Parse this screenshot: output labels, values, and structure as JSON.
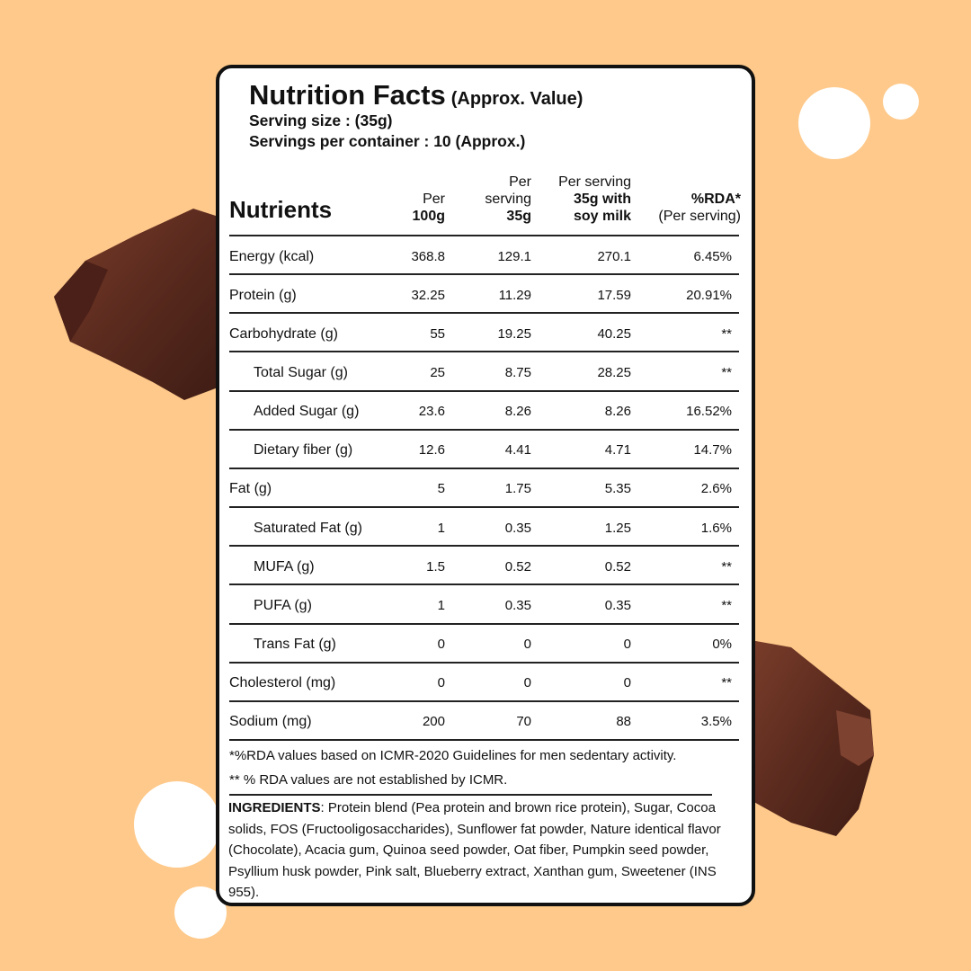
{
  "label": {
    "title": "Nutrition Facts",
    "subtitle": "(Approx. Value)",
    "serving_size": "Serving size :  (35g)",
    "servings_per_container": "Servings per container : 10 (Approx.)",
    "header": {
      "nutrients": "Nutrients",
      "columns": [
        {
          "lines": [
            {
              "text": "Per",
              "bold": false
            },
            {
              "text": "100g",
              "bold": true
            }
          ]
        },
        {
          "lines": [
            {
              "text": "Per",
              "bold": false
            },
            {
              "text": "serving",
              "bold": false
            },
            {
              "text": "35g",
              "bold": true
            }
          ]
        },
        {
          "lines": [
            {
              "text": "Per serving",
              "bold": false
            },
            {
              "text": "35g with",
              "bold": true
            },
            {
              "text": "soy milk",
              "bold": true
            }
          ]
        },
        {
          "lines": [
            {
              "text": "%RDA*",
              "bold": true
            },
            {
              "text": "(Per serving)",
              "bold": false
            }
          ]
        }
      ]
    },
    "rows": [
      {
        "name": "Energy (kcal)",
        "indent": false,
        "values": [
          "368.8",
          "129.1",
          "270.1",
          "6.45%"
        ]
      },
      {
        "name": "Protein (g)",
        "indent": false,
        "values": [
          "32.25",
          "11.29",
          "17.59",
          "20.91%"
        ]
      },
      {
        "name": "Carbohydrate (g)",
        "indent": false,
        "values": [
          "55",
          "19.25",
          "40.25",
          "**"
        ]
      },
      {
        "name": "Total Sugar (g)",
        "indent": true,
        "values": [
          "25",
          "8.75",
          "28.25",
          "**"
        ]
      },
      {
        "name": "Added Sugar (g)",
        "indent": true,
        "values": [
          "23.6",
          "8.26",
          "8.26",
          "16.52%"
        ]
      },
      {
        "name": "Dietary fiber (g)",
        "indent": true,
        "values": [
          "12.6",
          "4.41",
          "4.71",
          "14.7%"
        ]
      },
      {
        "name": "Fat (g)",
        "indent": false,
        "values": [
          "5",
          "1.75",
          "5.35",
          "2.6%"
        ]
      },
      {
        "name": "Saturated Fat (g)",
        "indent": true,
        "values": [
          "1",
          "0.35",
          "1.25",
          "1.6%"
        ]
      },
      {
        "name": "MUFA (g)",
        "indent": true,
        "values": [
          "1.5",
          "0.52",
          "0.52",
          "**"
        ]
      },
      {
        "name": "PUFA (g)",
        "indent": true,
        "values": [
          "1",
          "0.35",
          "0.35",
          "**"
        ]
      },
      {
        "name": "Trans Fat (g)",
        "indent": true,
        "values": [
          "0",
          "0",
          "0",
          "0%"
        ]
      },
      {
        "name": "Cholesterol (mg)",
        "indent": false,
        "values": [
          "0",
          "0",
          "0",
          "**"
        ]
      },
      {
        "name": "Sodium (mg)",
        "indent": false,
        "values": [
          "200",
          "70",
          "88",
          "3.5%"
        ]
      }
    ],
    "footnotes": [
      "*%RDA values based on ICMR-2020 Guidelines for men sedentary activity.",
      "** % RDA values are not established by ICMR."
    ],
    "ingredients": {
      "label": "INGREDIENTS",
      "text": ": Protein blend (Pea protein and brown rice protein), Sugar, Cocoa solids, FOS (Fructooligosaccharides), Sunflower fat powder, Nature identical flavor (Chocolate), Acacia gum, Quinoa seed powder, Oat fiber, Pumpkin seed powder, Psyllium husk powder, Pink salt, Blueberry extract, Xanthan gum, Sweetener (INS 955)."
    }
  }
}
